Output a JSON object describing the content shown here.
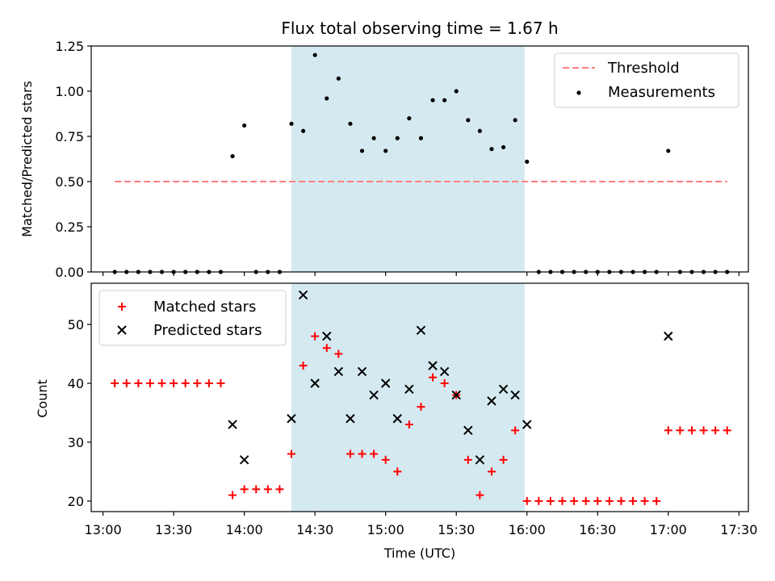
{
  "chart_data": [
    {
      "type": "scatter",
      "title": "Flux total observing time = 1.67 h",
      "xlabel": "",
      "ylabel": "Matched/Predicted stars",
      "ylim": [
        0,
        1.25
      ],
      "yticks": [
        "0.00",
        "0.25",
        "0.50",
        "0.75",
        "1.00",
        "1.25"
      ],
      "legend_position": "top-right",
      "shaded_span": {
        "start": "14:20",
        "end": "15:59",
        "color": "#d4eaf0"
      },
      "series": [
        {
          "name": "Threshold",
          "style": "dashed-line",
          "color": "#ff7f7f",
          "x": [
            "13:05",
            "17:25"
          ],
          "y": [
            0.5,
            0.5
          ]
        },
        {
          "name": "Measurements",
          "style": "dot",
          "color": "#000000",
          "x": [
            "13:05",
            "13:10",
            "13:15",
            "13:20",
            "13:25",
            "13:30",
            "13:35",
            "13:40",
            "13:45",
            "13:50",
            "13:55",
            "14:00",
            "14:05",
            "14:10",
            "14:15",
            "14:20",
            "14:25",
            "14:30",
            "14:35",
            "14:40",
            "14:45",
            "14:50",
            "14:55",
            "15:00",
            "15:05",
            "15:10",
            "15:15",
            "15:20",
            "15:25",
            "15:30",
            "15:35",
            "15:40",
            "15:45",
            "15:50",
            "15:55",
            "16:00",
            "16:05",
            "16:10",
            "16:15",
            "16:20",
            "16:25",
            "16:30",
            "16:35",
            "16:40",
            "16:45",
            "16:50",
            "16:55",
            "17:00",
            "17:05",
            "17:10",
            "17:15",
            "17:20",
            "17:25"
          ],
          "y": [
            0,
            0,
            0,
            0,
            0,
            0,
            0,
            0,
            0,
            0,
            0.64,
            0.81,
            0,
            0,
            0,
            0.82,
            0.78,
            1.2,
            0.96,
            1.07,
            0.82,
            0.67,
            0.74,
            0.67,
            0.74,
            0.85,
            0.74,
            0.95,
            0.95,
            1.0,
            0.84,
            0.78,
            0.68,
            0.69,
            0.84,
            0.61,
            0,
            0,
            0,
            0,
            0,
            0,
            0,
            0,
            0,
            0,
            0,
            0.67,
            0,
            0,
            0,
            0,
            0
          ]
        }
      ]
    },
    {
      "type": "scatter",
      "title": "",
      "xlabel": "Time (UTC)",
      "ylabel": "Count",
      "ylim": [
        18.2,
        57
      ],
      "yticks": [
        "20",
        "30",
        "40",
        "50"
      ],
      "xticks": [
        "13:00",
        "13:30",
        "14:00",
        "14:30",
        "15:00",
        "15:30",
        "16:00",
        "16:30",
        "17:00",
        "17:30"
      ],
      "legend_position": "top-left",
      "shaded_span": {
        "start": "14:20",
        "end": "15:59",
        "color": "#d4eaf0"
      },
      "series": [
        {
          "name": "Matched stars",
          "style": "plus",
          "color": "#ff0000",
          "x": [
            "13:05",
            "13:10",
            "13:15",
            "13:20",
            "13:25",
            "13:30",
            "13:35",
            "13:40",
            "13:45",
            "13:50",
            "13:55",
            "14:00",
            "14:05",
            "14:10",
            "14:15",
            "14:20",
            "14:25",
            "14:30",
            "14:35",
            "14:40",
            "14:45",
            "14:50",
            "14:55",
            "15:00",
            "15:05",
            "15:10",
            "15:15",
            "15:20",
            "15:25",
            "15:30",
            "15:35",
            "15:40",
            "15:45",
            "15:50",
            "15:55",
            "16:00",
            "16:05",
            "16:10",
            "16:15",
            "16:20",
            "16:25",
            "16:30",
            "16:35",
            "16:40",
            "16:45",
            "16:50",
            "16:55",
            "17:00",
            "17:05",
            "17:10",
            "17:15",
            "17:20",
            "17:25"
          ],
          "y": [
            40,
            40,
            40,
            40,
            40,
            40,
            40,
            40,
            40,
            40,
            21,
            22,
            22,
            22,
            22,
            28,
            43,
            48,
            46,
            45,
            28,
            28,
            28,
            27,
            25,
            33,
            36,
            41,
            40,
            38,
            27,
            21,
            25,
            27,
            32,
            20,
            20,
            20,
            20,
            20,
            20,
            20,
            20,
            20,
            20,
            20,
            20,
            32,
            32,
            32,
            32,
            32,
            32
          ]
        },
        {
          "name": "Predicted stars",
          "style": "x",
          "color": "#000000",
          "x": [
            "13:55",
            "14:00",
            "14:20",
            "14:25",
            "14:30",
            "14:35",
            "14:40",
            "14:45",
            "14:50",
            "14:55",
            "15:00",
            "15:05",
            "15:10",
            "15:15",
            "15:20",
            "15:25",
            "15:30",
            "15:35",
            "15:40",
            "15:45",
            "15:50",
            "15:55",
            "16:00",
            "17:00"
          ],
          "y": [
            33,
            27,
            34,
            55,
            40,
            48,
            42,
            34,
            42,
            38,
            40,
            34,
            39,
            49,
            43,
            42,
            38,
            32,
            27,
            37,
            39,
            38,
            33,
            48
          ]
        }
      ]
    }
  ]
}
